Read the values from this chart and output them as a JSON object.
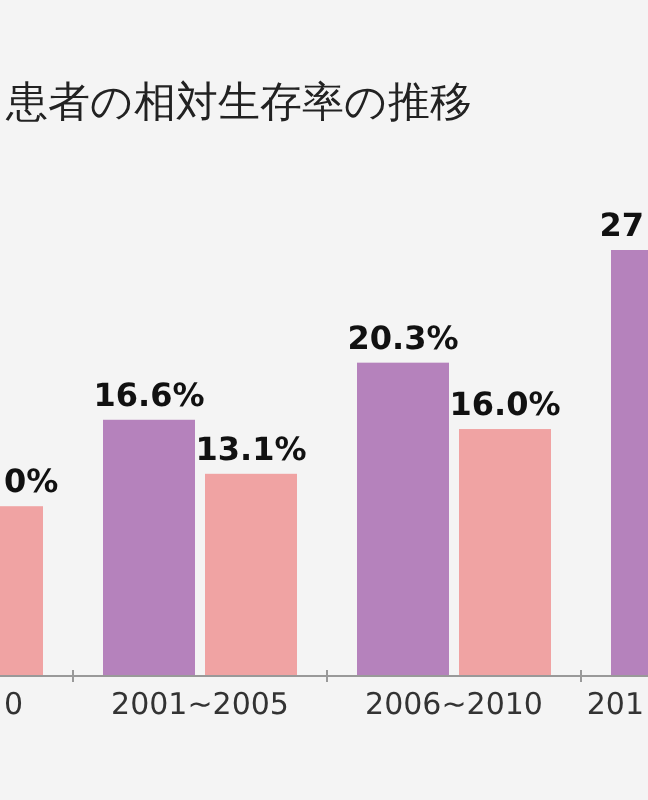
{
  "chart_data": {
    "type": "bar",
    "title": "患者の相対生存率の推移",
    "categories": [
      "0",
      "2001~2005",
      "2006~2010",
      "201"
    ],
    "series": [
      {
        "color": "#b582bc",
        "values": [
          null,
          16.6,
          20.3,
          27.6
        ],
        "value_labels": [
          null,
          "16.6%",
          "20.3%",
          null
        ]
      },
      {
        "color": "#f0a3a3",
        "values": [
          11.0,
          13.1,
          16.0,
          null
        ],
        "value_labels": [
          null,
          "13.1%",
          "16.0%",
          null
        ]
      }
    ],
    "annotations": [
      {
        "text": "0%",
        "x": "0",
        "y": 11.0
      },
      {
        "text": "27",
        "x": "201",
        "y": 27.6
      }
    ]
  }
}
